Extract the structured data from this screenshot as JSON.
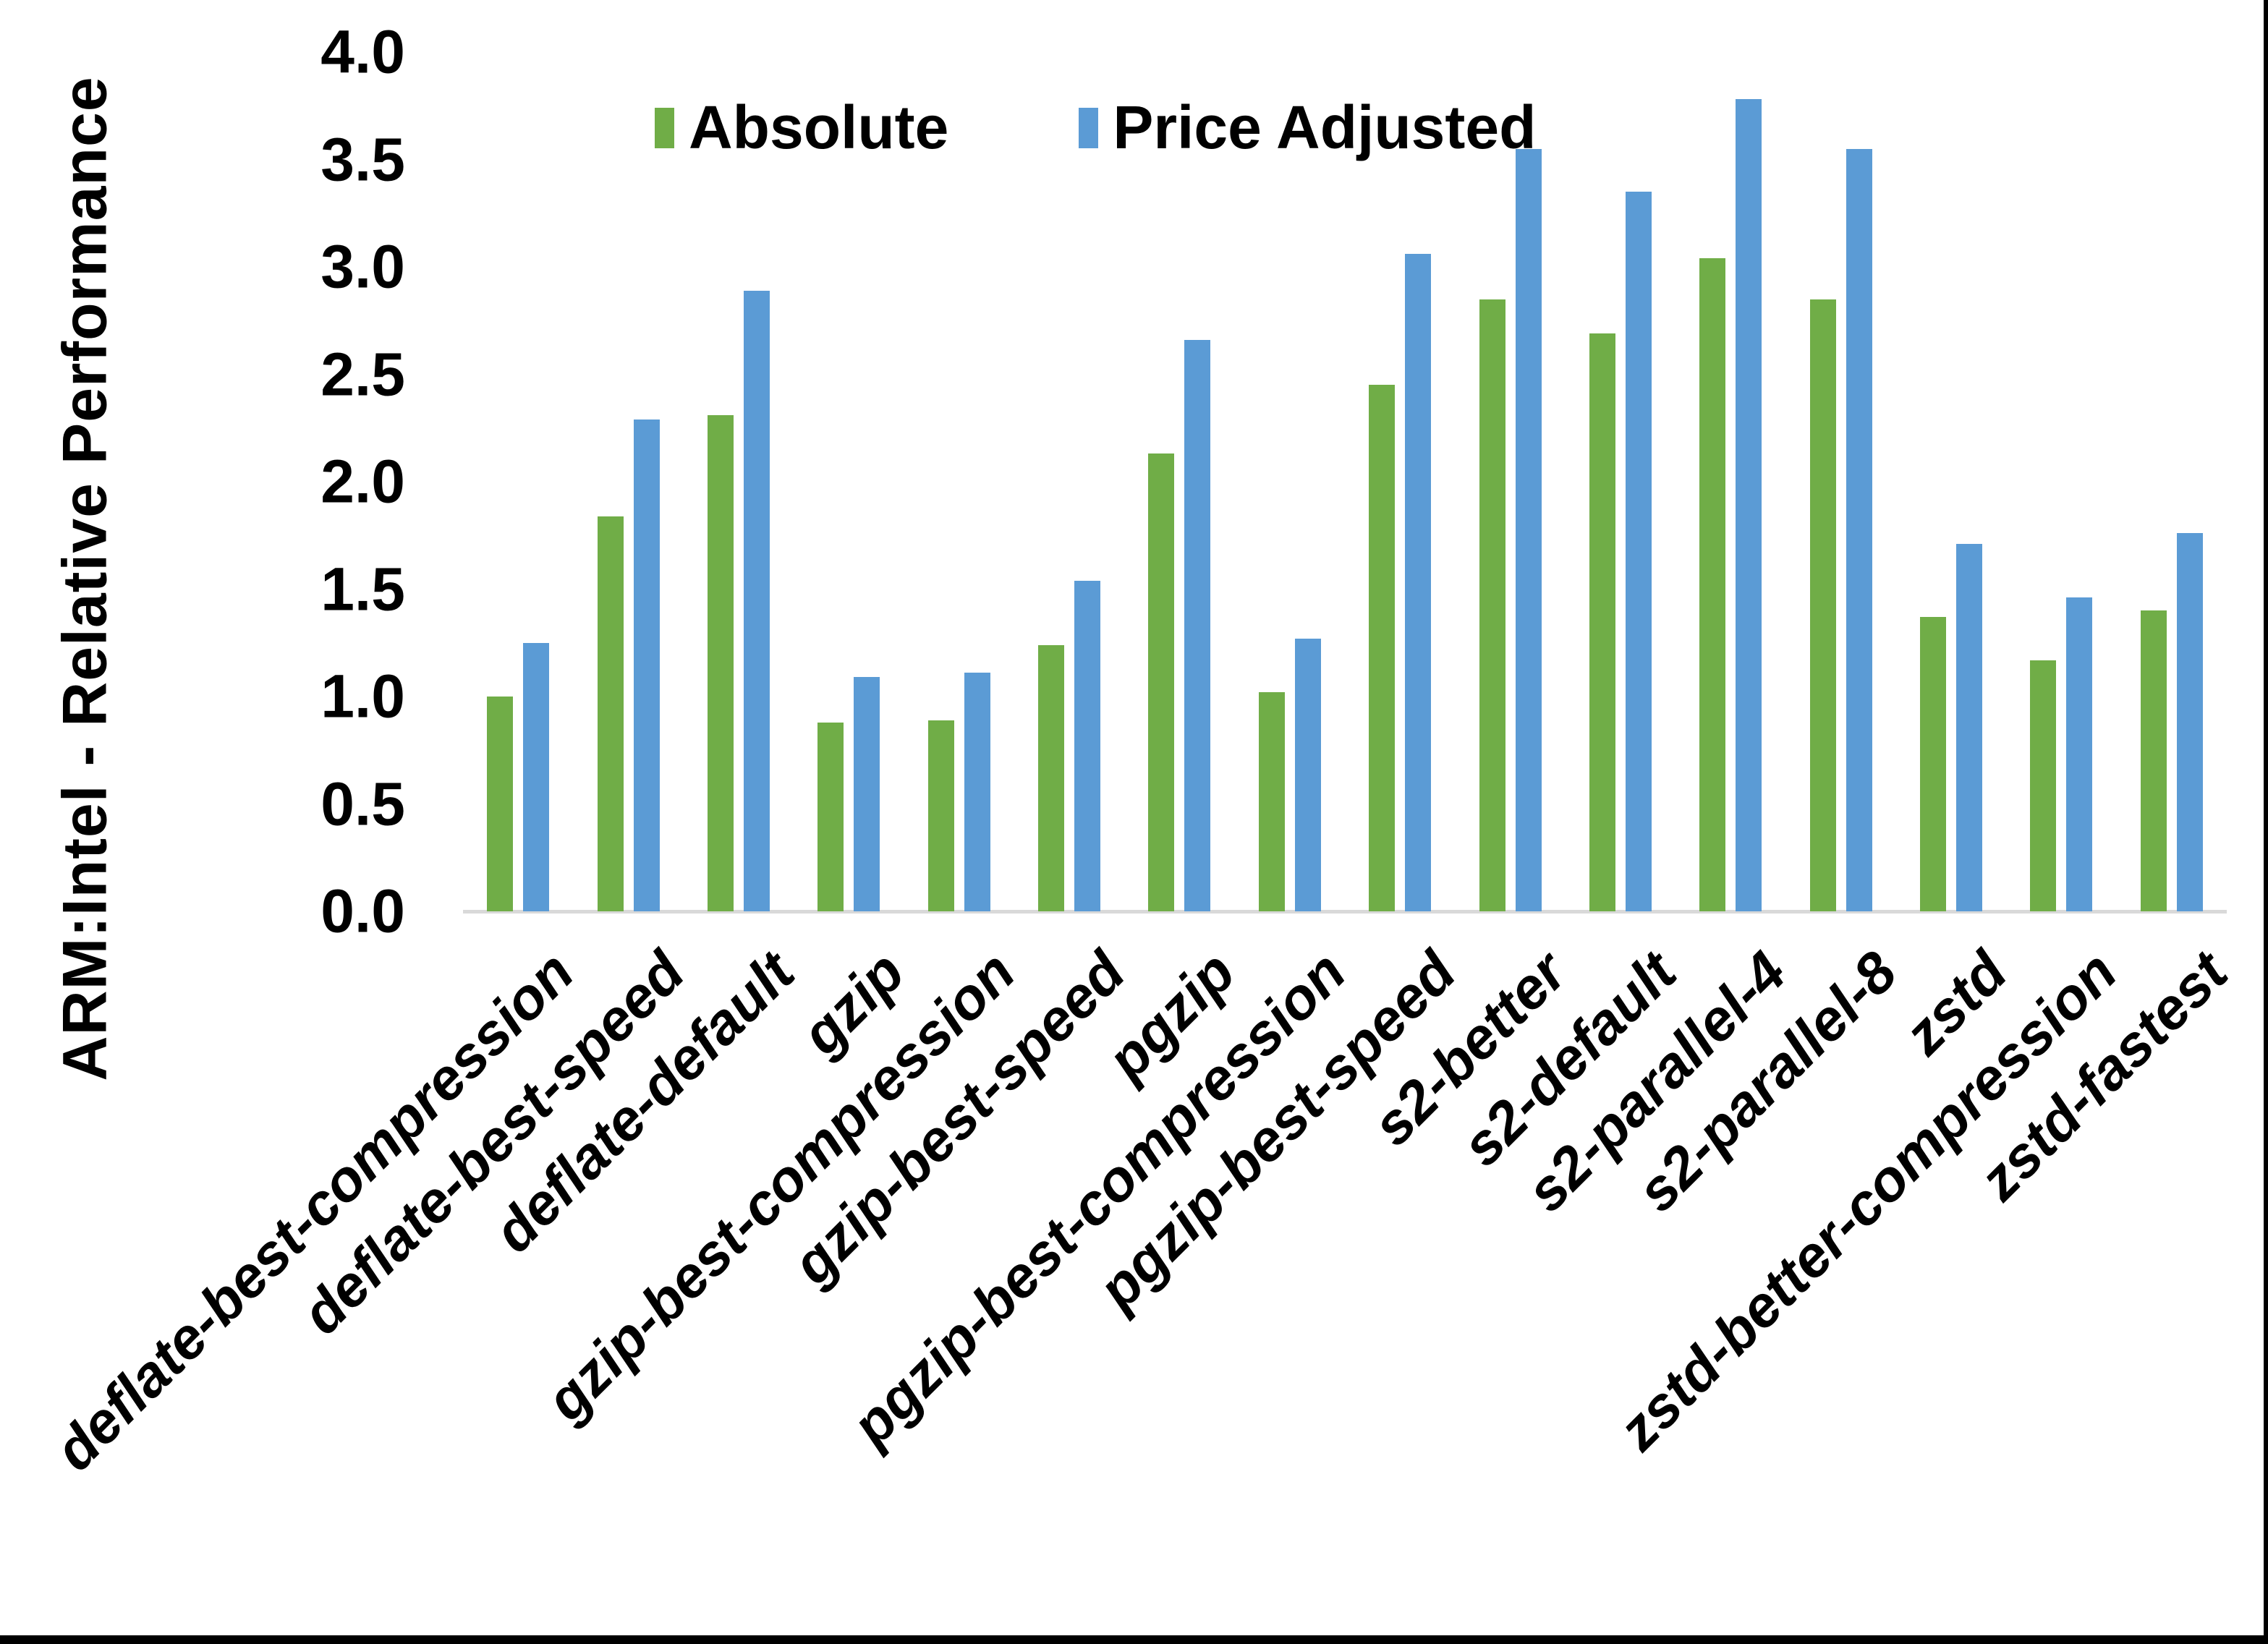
{
  "chart_data": {
    "type": "bar",
    "title": "",
    "xlabel": "",
    "ylabel": "ARM:Intel - Relative Performance",
    "ylim": [
      0.0,
      4.0
    ],
    "ytick_labels": [
      "0.0",
      "0.5",
      "1.0",
      "1.5",
      "2.0",
      "2.5",
      "3.0",
      "3.5",
      "4.0"
    ],
    "grid": false,
    "legend_position": "top-center",
    "axis_line_color": "#d9d9d9",
    "categories": [
      "deflate-best-compression",
      "deflate-best-speed",
      "deflate-default",
      "gzip",
      "gzip-best-compression",
      "gzip-best-speed",
      "pgzip",
      "pgzip-best-compression",
      "pgzip-best-speed",
      "s2-better",
      "s2-default",
      "s2-parallel-4",
      "s2-parallel-8",
      "zstd",
      "zstd-better-compression",
      "zstd-fastest"
    ],
    "series": [
      {
        "name": "Absolute",
        "color": "#70AD47",
        "values": [
          1.0,
          1.84,
          2.31,
          0.88,
          0.89,
          1.24,
          2.13,
          1.02,
          2.45,
          2.85,
          2.69,
          3.04,
          2.85,
          1.37,
          1.17,
          1.4
        ]
      },
      {
        "name": "Price Adjusted",
        "color": "#5B9BD5",
        "values": [
          1.25,
          2.29,
          2.89,
          1.09,
          1.11,
          1.54,
          2.66,
          1.27,
          3.06,
          3.55,
          3.35,
          3.78,
          3.55,
          1.71,
          1.46,
          1.76
        ]
      }
    ]
  }
}
